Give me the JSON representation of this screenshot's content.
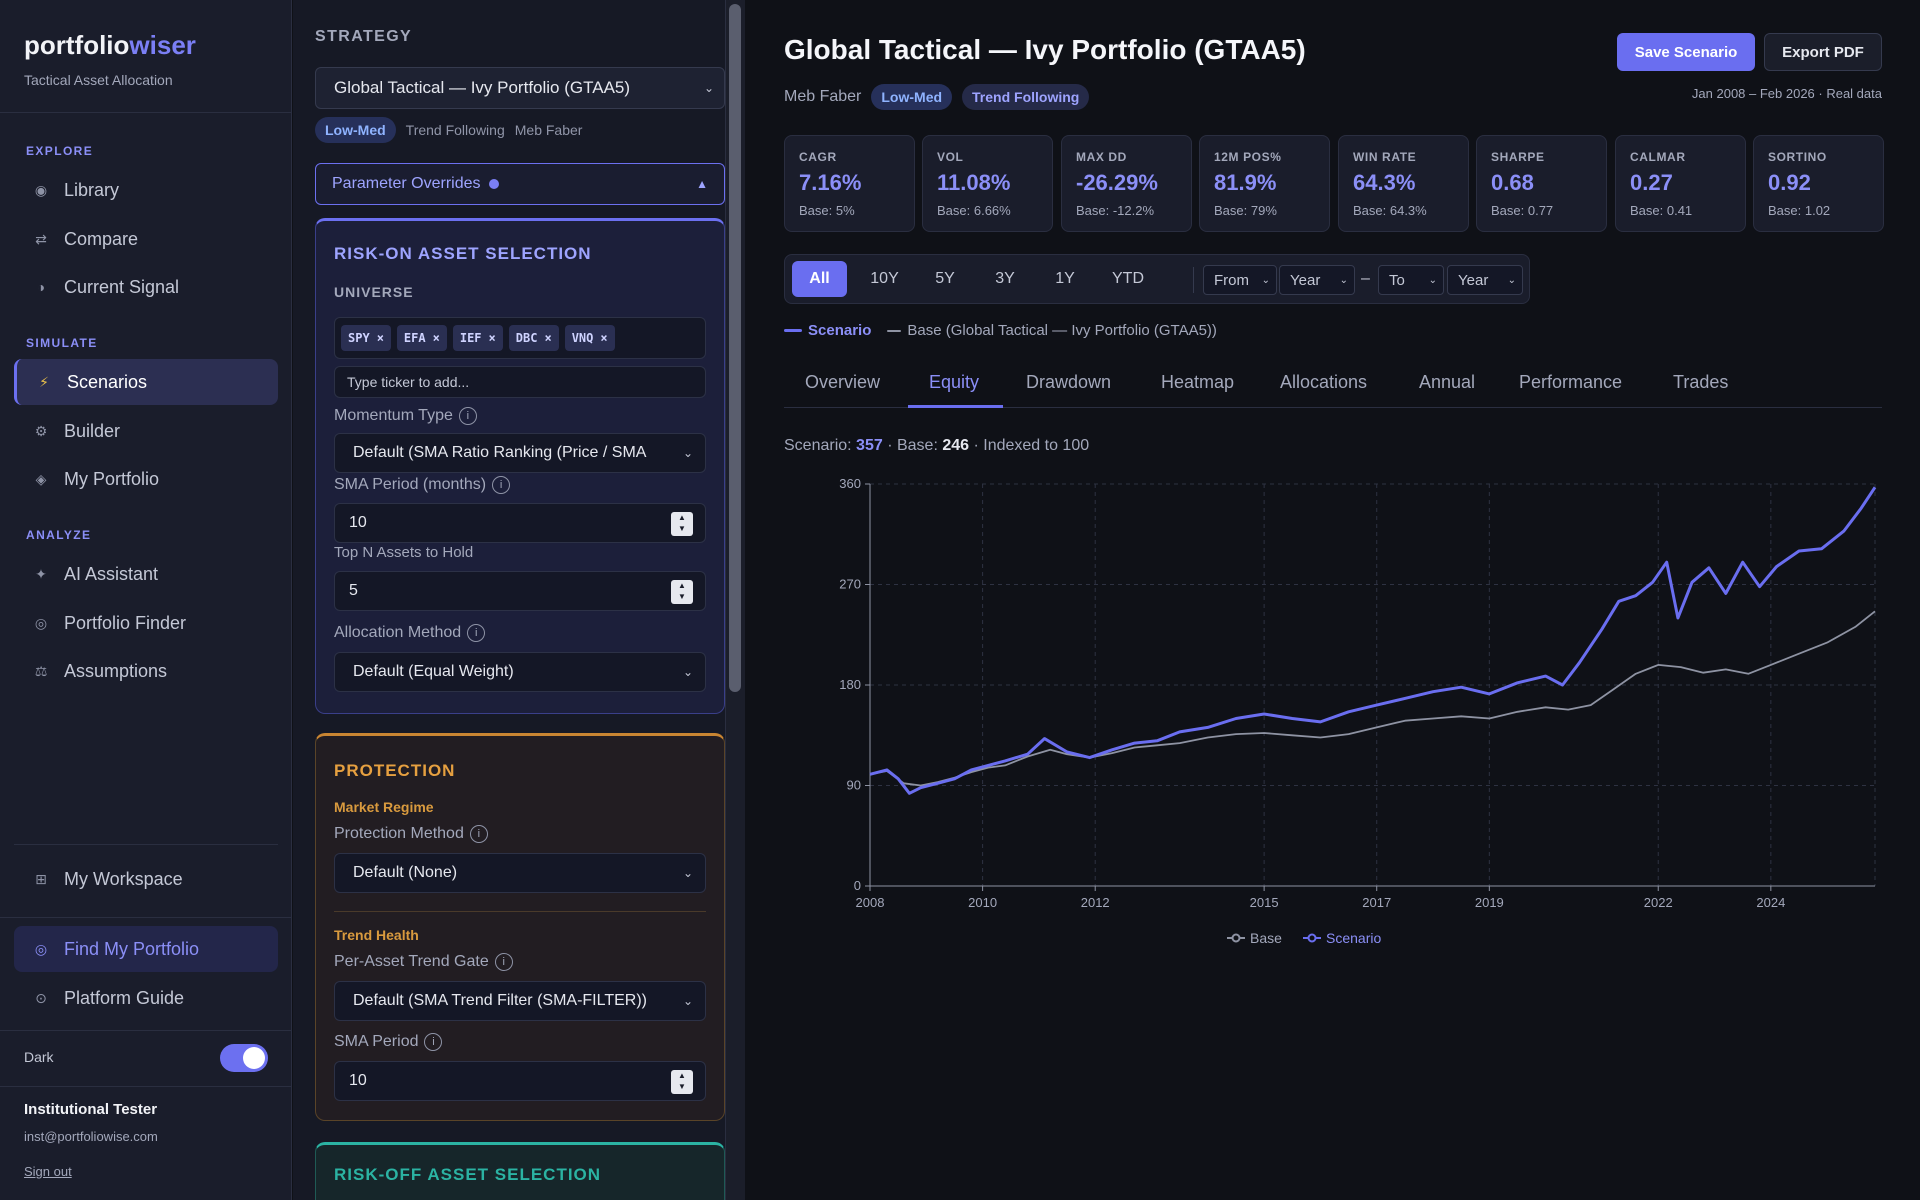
{
  "brand": {
    "name_a": "portfolio",
    "name_b": "wiser",
    "subtitle": "Tactical Asset Allocation"
  },
  "sidebar": {
    "explore_label": "EXPLORE",
    "explore": [
      {
        "label": "Library",
        "icon": "circle-icon"
      },
      {
        "label": "Compare",
        "icon": "arrows-icon"
      },
      {
        "label": "Current Signal",
        "icon": "half-circle-icon"
      }
    ],
    "simulate_label": "SIMULATE",
    "simulate": [
      {
        "label": "Scenarios",
        "icon": "lightning-icon"
      },
      {
        "label": "Builder",
        "icon": "gear-icon"
      },
      {
        "label": "My Portfolio",
        "icon": "diamond-icon"
      }
    ],
    "analyze_label": "ANALYZE",
    "analyze": [
      {
        "label": "AI Assistant",
        "icon": "sparkle-icon"
      },
      {
        "label": "Portfolio Finder",
        "icon": "target-icon"
      },
      {
        "label": "Assumptions",
        "icon": "scale-icon"
      }
    ],
    "workspace": "My Workspace",
    "find": "Find My Portfolio",
    "guide": "Platform Guide",
    "dark_label": "Dark",
    "dark_on": true,
    "user_name": "Institutional Tester",
    "user_email": "inst@portfoliowise.com",
    "sign_out": "Sign out"
  },
  "strategy": {
    "label": "STRATEGY",
    "selected": "Global Tactical — Ivy Portfolio (GTAA5)",
    "risk_tag": "Low-Med",
    "style": "Trend Following",
    "author": "Meb Faber",
    "overrides_label": "Parameter Overrides",
    "risk_on": {
      "title": "RISK-ON ASSET SELECTION",
      "universe_label": "UNIVERSE",
      "tickers": [
        "SPY",
        "EFA",
        "IEF",
        "DBC",
        "VNQ"
      ],
      "ticker_placeholder": "Type ticker to add...",
      "momentum_label": "Momentum Type",
      "momentum_value": "Default (SMA Ratio Ranking (Price / SMA",
      "sma_label": "SMA Period (months)",
      "sma_value": "10",
      "topn_label": "Top N Assets to Hold",
      "topn_value": "5",
      "alloc_label": "Allocation Method",
      "alloc_value": "Default (Equal Weight)"
    },
    "protection": {
      "title": "PROTECTION",
      "regime_label": "Market Regime",
      "method_label": "Protection Method",
      "method_value": "Default (None)",
      "trend_label": "Trend Health",
      "gate_label": "Per-Asset Trend Gate",
      "gate_value": "Default (SMA Trend Filter (SMA-FILTER))",
      "sma_label": "SMA Period",
      "sma_value": "10"
    },
    "risk_off": {
      "title": "RISK-OFF ASSET SELECTION"
    }
  },
  "header": {
    "title": "Global Tactical — Ivy Portfolio (GTAA5)",
    "author": "Meb Faber",
    "risk_tag": "Low-Med",
    "style_tag": "Trend Following",
    "range": "Jan 2008 – Feb 2026 · Real data",
    "save": "Save Scenario",
    "export": "Export PDF"
  },
  "metrics": [
    {
      "label": "CAGR",
      "value": "7.16%",
      "base": "Base: 5%"
    },
    {
      "label": "VOL",
      "value": "11.08%",
      "base": "Base: 6.66%"
    },
    {
      "label": "MAX DD",
      "value": "-26.29%",
      "base": "Base: -12.2%"
    },
    {
      "label": "12M POS%",
      "value": "81.9%",
      "base": "Base: 79%"
    },
    {
      "label": "WIN RATE",
      "value": "64.3%",
      "base": "Base: 64.3%"
    },
    {
      "label": "SHARPE",
      "value": "0.68",
      "base": "Base: 0.77"
    },
    {
      "label": "CALMAR",
      "value": "0.27",
      "base": "Base: 0.41"
    },
    {
      "label": "SORTINO",
      "value": "0.92",
      "base": "Base: 1.02"
    }
  ],
  "range_bar": {
    "buttons": [
      "All",
      "10Y",
      "5Y",
      "3Y",
      "1Y",
      "YTD"
    ],
    "active": "All",
    "from": "From",
    "year_a": "Year",
    "dash": "–",
    "to": "To",
    "year_b": "Year"
  },
  "top_legend": {
    "scenario": "Scenario",
    "base": "Base (Global Tactical — Ivy Portfolio (GTAA5))"
  },
  "tabs": [
    "Overview",
    "Equity",
    "Drawdown",
    "Heatmap",
    "Allocations",
    "Annual",
    "Performance",
    "Trades"
  ],
  "active_tab": "Equity",
  "readout": {
    "scenario_label": "Scenario: ",
    "scenario_value": "357",
    "sep": " · Base: ",
    "base_value": "246",
    "suffix": " · Indexed to 100"
  },
  "colors": {
    "scenario": "#6a6ef0",
    "base": "#8e93a3",
    "accent": "#6a6ef0",
    "protection": "#d99a3e",
    "risk_off": "#2bb3a3"
  },
  "chart_data": {
    "type": "line",
    "x_label": "",
    "y_label": "",
    "ylim": [
      0,
      360
    ],
    "xlim": [
      2008,
      2025.85
    ],
    "y_ticks": [
      0,
      90,
      180,
      270,
      360
    ],
    "x_ticks": [
      2008,
      2010,
      2012,
      2015,
      2017,
      2019,
      2022,
      2024
    ],
    "grid": true,
    "legend_position": "bottom-center",
    "series": [
      {
        "name": "Base",
        "color": "#8e93a3",
        "x": [
          2008.0,
          2008.3,
          2008.6,
          2008.9,
          2009.2,
          2009.5,
          2009.8,
          2010.1,
          2010.4,
          2010.8,
          2011.2,
          2011.5,
          2011.9,
          2012.3,
          2012.7,
          2013.1,
          2013.5,
          2014.0,
          2014.5,
          2015.0,
          2015.5,
          2016.0,
          2016.5,
          2017.0,
          2017.5,
          2018.0,
          2018.5,
          2019.0,
          2019.5,
          2020.0,
          2020.4,
          2020.8,
          2021.2,
          2021.6,
          2022.0,
          2022.4,
          2022.8,
          2023.2,
          2023.6,
          2024.0,
          2024.5,
          2025.0,
          2025.5,
          2025.85
        ],
        "values": [
          100,
          103,
          92,
          90,
          93,
          97,
          102,
          106,
          108,
          116,
          122,
          118,
          115,
          119,
          124,
          126,
          128,
          133,
          136,
          137,
          135,
          133,
          136,
          142,
          148,
          150,
          152,
          150,
          156,
          160,
          158,
          162,
          176,
          190,
          198,
          196,
          191,
          194,
          190,
          198,
          208,
          218,
          232,
          246
        ]
      },
      {
        "name": "Scenario",
        "color": "#6a6ef0",
        "x": [
          2008.0,
          2008.3,
          2008.5,
          2008.7,
          2008.9,
          2009.2,
          2009.5,
          2009.8,
          2010.1,
          2010.4,
          2010.8,
          2011.1,
          2011.5,
          2011.9,
          2012.3,
          2012.7,
          2013.1,
          2013.5,
          2014.0,
          2014.5,
          2015.0,
          2015.5,
          2016.0,
          2016.5,
          2017.0,
          2017.5,
          2018.0,
          2018.5,
          2019.0,
          2019.5,
          2020.0,
          2020.3,
          2020.6,
          2021.0,
          2021.3,
          2021.6,
          2021.9,
          2022.15,
          2022.35,
          2022.6,
          2022.9,
          2023.2,
          2023.5,
          2023.8,
          2024.1,
          2024.5,
          2024.9,
          2025.3,
          2025.6,
          2025.85
        ],
        "values": [
          100,
          104,
          96,
          83,
          88,
          92,
          96,
          104,
          108,
          112,
          118,
          132,
          120,
          115,
          122,
          128,
          130,
          138,
          142,
          150,
          154,
          150,
          147,
          156,
          162,
          168,
          174,
          178,
          172,
          182,
          188,
          180,
          200,
          230,
          255,
          260,
          272,
          290,
          240,
          272,
          285,
          262,
          290,
          268,
          286,
          300,
          302,
          318,
          338,
          357
        ]
      }
    ]
  }
}
